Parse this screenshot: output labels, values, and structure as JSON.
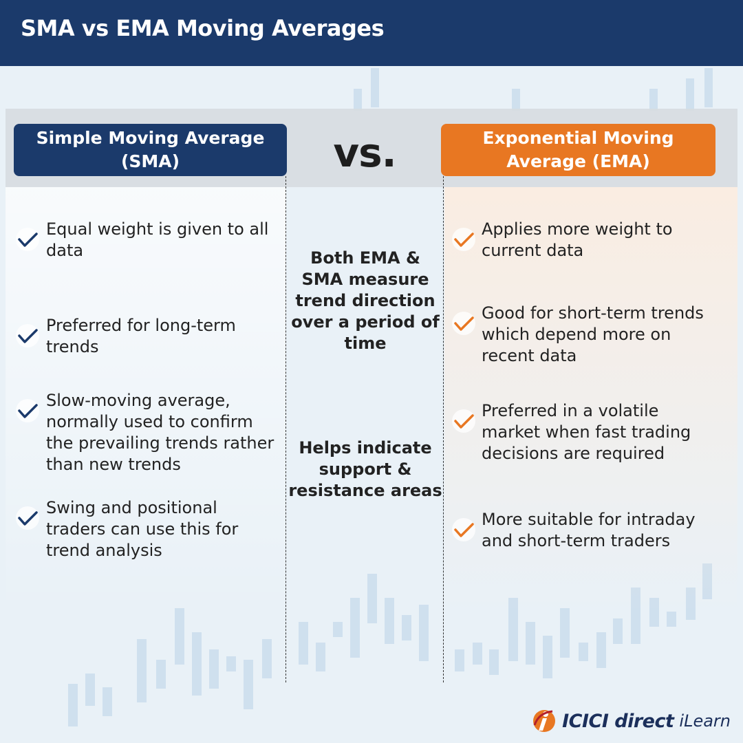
{
  "header": {
    "title": "SMA vs EMA Moving Averages"
  },
  "left": {
    "title": "Simple Moving Average (SMA)",
    "points": [
      "Equal weight is given to all data",
      "Preferred for long-term trends",
      "Slow-moving average, normally used to confirm the prevailing trends rather than new trends",
      "Swing and positional traders can use this for trend analysis"
    ]
  },
  "vs": "vs.",
  "middle": {
    "points": [
      "Both EMA & SMA measure trend direction over a period of time",
      "Helps indicate support & resistance areas"
    ]
  },
  "right": {
    "title": "Exponential Moving Average (EMA)",
    "points": [
      "Applies more weight to current data",
      "Good for short-term trends which depend more on recent data",
      "Preferred in a volatile market when fast trading decisions are required",
      "More suitable for intraday and short-term traders"
    ]
  },
  "footer": {
    "brand": "ICICI direct",
    "product": "iLearn"
  }
}
